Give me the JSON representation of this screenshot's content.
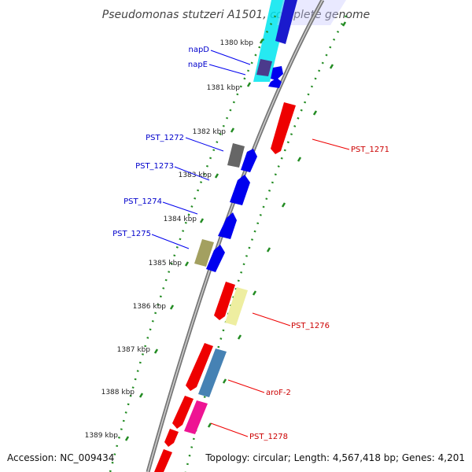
{
  "title": "Pseudomonas stutzeri A1501, complete genome",
  "footer": {
    "accession": "Accession: NC_009434",
    "topology": "Topology: circular; Length: 4,567,418 bp; Genes: 4,201"
  },
  "colors": {
    "forward": "#ff0000",
    "reverse": "#0000ff",
    "forward_label": "#cc0000",
    "reverse_label": "#0000cc",
    "tick": "#228b22",
    "backbone": "#888888"
  },
  "kbp_labels": [
    "1380 kbp",
    "1381 kbp",
    "1382 kbp",
    "1383 kbp",
    "1384 kbp",
    "1385 kbp",
    "1386 kbp",
    "1387 kbp",
    "1388 kbp",
    "1389 kbp"
  ],
  "gene_labels": {
    "left": [
      "napD",
      "napE",
      "PST_1272",
      "PST_1273",
      "PST_1274",
      "PST_1275"
    ],
    "right": [
      "PST_1271",
      "PST_1276",
      "aroF-2",
      "PST_1278"
    ]
  }
}
